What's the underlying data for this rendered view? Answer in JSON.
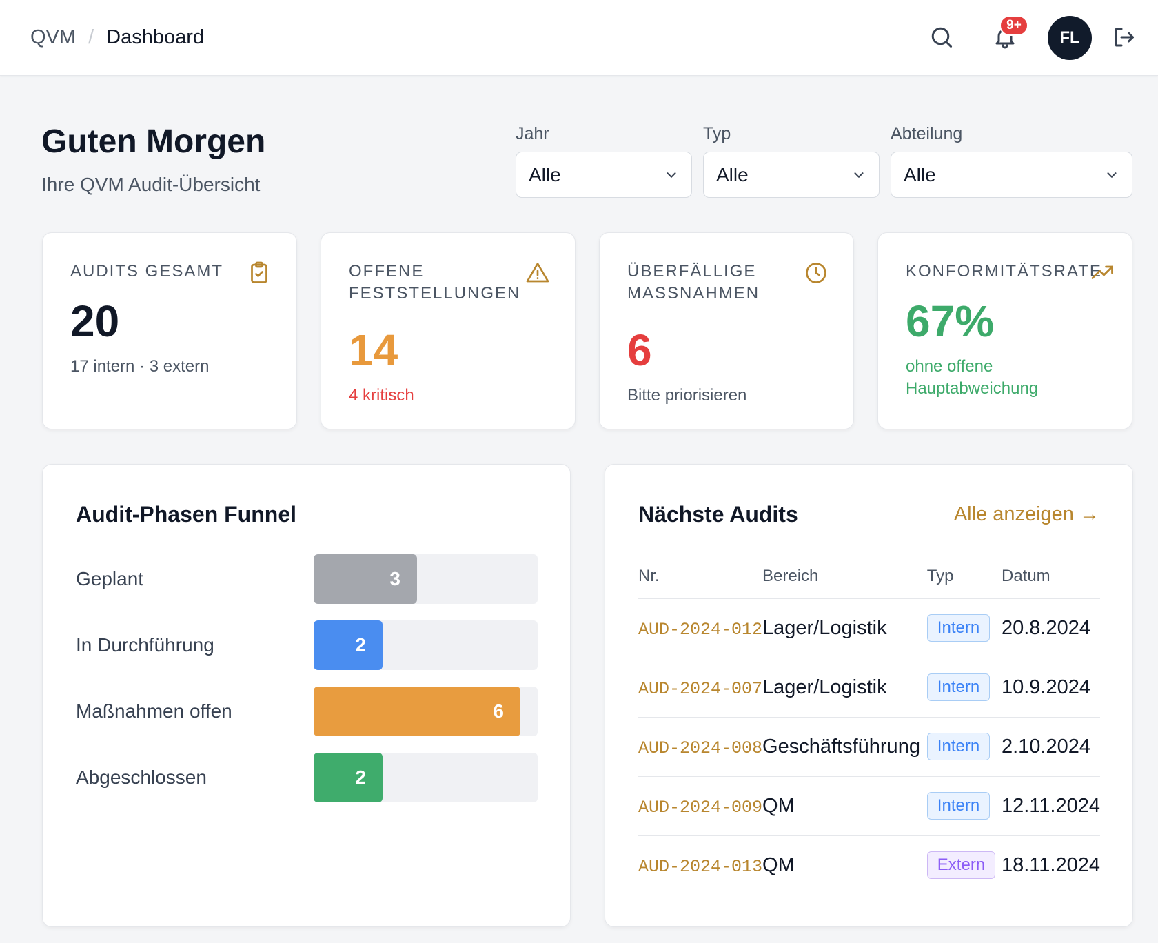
{
  "header": {
    "breadcrumb_root": "QVM",
    "breadcrumb_separator": "/",
    "breadcrumb_current": "Dashboard",
    "notification_count": "9+",
    "avatar_initials": "FL",
    "icons": [
      "search-icon",
      "bell-icon",
      "logout-icon"
    ]
  },
  "greeting": {
    "title": "Guten Morgen",
    "subtitle": "Ihre QVM Audit-Übersicht"
  },
  "filters": [
    {
      "label": "Jahr",
      "value": "Alle"
    },
    {
      "label": "Typ",
      "value": "Alle"
    },
    {
      "label": "Abteilung",
      "value": "Alle"
    }
  ],
  "kpis": [
    {
      "label": "AUDITS GESAMT",
      "value": "20",
      "sub": "17 intern · 3 extern",
      "icon": "clipboard-check-icon",
      "value_color": "#111827",
      "sub_color": "#4b5563"
    },
    {
      "label": "OFFENE FESTSTELLUNGEN",
      "value": "14",
      "sub": "4 kritisch",
      "icon": "warning-triangle-icon",
      "value_color": "#e8993c",
      "sub_color": "#e53e3e"
    },
    {
      "label": "ÜBERFÄLLIGE MASSNAHMEN",
      "value": "6",
      "sub": "Bitte priorisieren",
      "icon": "clock-icon",
      "value_color": "#e53e3e",
      "sub_color": "#4b5563"
    },
    {
      "label": "KONFORMITÄTSRATE",
      "value": "67%",
      "sub": "ohne offene Hauptabweichung",
      "icon": "trending-up-icon",
      "value_color": "#3daa6a",
      "sub_color": "#3daa6a"
    }
  ],
  "funnel": {
    "title": "Audit-Phasen Funnel",
    "max": 6.5,
    "phases": [
      {
        "label": "Geplant",
        "value": 3,
        "display": "3",
        "color": "#a4a7ad"
      },
      {
        "label": "In Durchführung",
        "value": 2,
        "display": "2",
        "color": "#4a8df0"
      },
      {
        "label": "Maßnahmen offen",
        "value": 6,
        "display": "6",
        "color": "#e89c3f"
      },
      {
        "label": "Abgeschlossen",
        "value": 2,
        "display": "2",
        "color": "#3fac6c"
      }
    ]
  },
  "next_audits": {
    "title": "Nächste Audits",
    "link_label": "Alle anzeigen →",
    "columns": [
      "Nr.",
      "Bereich",
      "Typ",
      "Datum"
    ],
    "rows": [
      {
        "nr": "AUD-2024-012",
        "bereich": "Lager/Logistik",
        "typ": "Intern",
        "datum": "20.8.2024"
      },
      {
        "nr": "AUD-2024-007",
        "bereich": "Lager/Logistik",
        "typ": "Intern",
        "datum": "10.9.2024"
      },
      {
        "nr": "AUD-2024-008",
        "bereich": "Geschäftsführung",
        "typ": "Intern",
        "datum": "2.10.2024"
      },
      {
        "nr": "AUD-2024-009",
        "bereich": "QM",
        "typ": "Intern",
        "datum": "12.11.2024"
      },
      {
        "nr": "AUD-2024-013",
        "bereich": "QM",
        "typ": "Extern",
        "datum": "18.11.2024"
      }
    ]
  }
}
